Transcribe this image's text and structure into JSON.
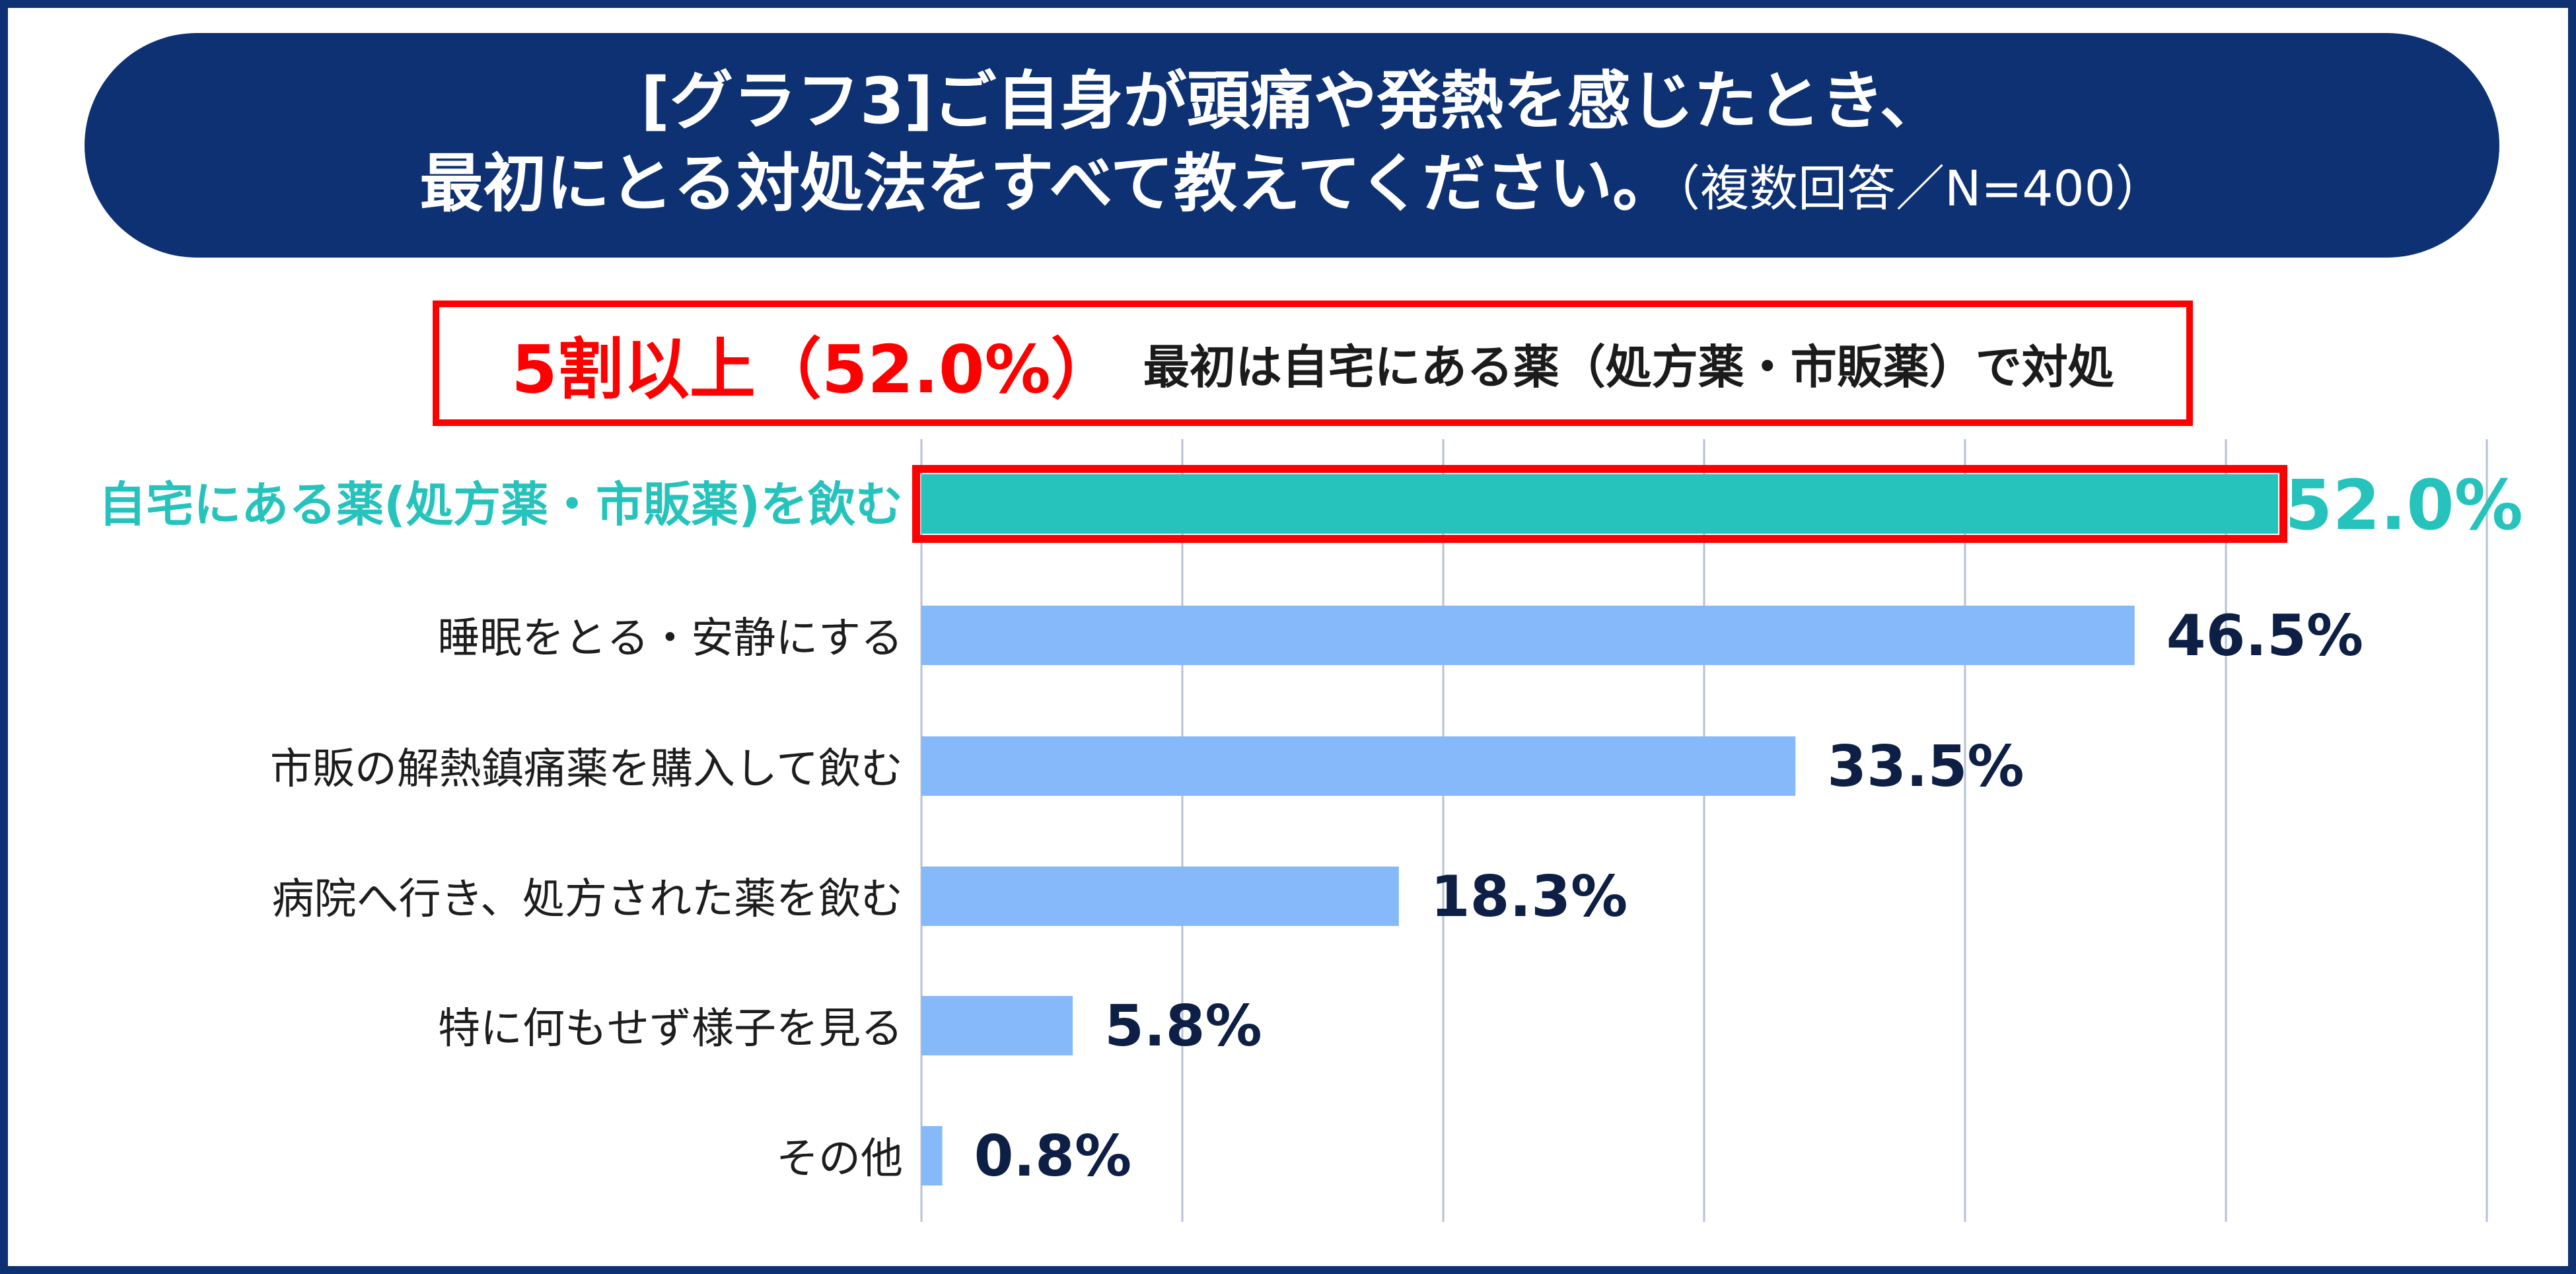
{
  "header": {
    "title_line1": "[グラフ3]ご自身が頭痛や発熱を感じたとき、",
    "title_line2": "最初にとる対処法をすべて教えてください。",
    "title_note": "（複数回答／N=400）"
  },
  "callout": {
    "highlight": "5割以上（52.0%）",
    "text": "最初は自宅にある薬（処方薬・市販薬）で対処"
  },
  "colors": {
    "frame": "#0d3173",
    "banner": "#0d3173",
    "highlight_bar": "#26c3bc",
    "bar": "#86b9fa",
    "highlight_border": "#ff0000",
    "value_label": "#0e1f45"
  },
  "chart_data": {
    "type": "bar",
    "orientation": "horizontal",
    "categories": [
      "自宅にある薬(処方薬・市販薬)を飲む",
      "睡眠をとる・安静にする",
      "市販の解熱鎮痛薬を購入して飲む",
      "病院へ行き、処方された薬を飲む",
      "特に何もせず様子を見る",
      "その他"
    ],
    "values": [
      52.0,
      46.5,
      33.5,
      18.3,
      5.8,
      0.8
    ],
    "value_labels": [
      "52.0%",
      "46.5%",
      "33.5%",
      "18.3%",
      "5.8%",
      "0.8%"
    ],
    "highlighted_index": 0,
    "xlim": [
      0,
      60
    ],
    "grid": true,
    "gridline_step": 10,
    "legend": "none"
  }
}
